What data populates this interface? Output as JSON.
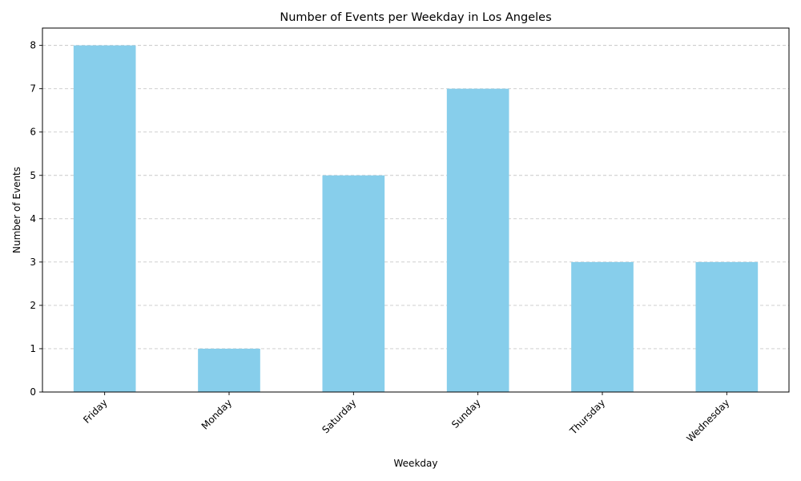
{
  "chart_data": {
    "type": "bar",
    "title": "Number of Events per Weekday in Los Angeles",
    "xlabel": "Weekday",
    "ylabel": "Number of Events",
    "categories": [
      "Friday",
      "Monday",
      "Saturday",
      "Sunday",
      "Thursday",
      "Wednesday"
    ],
    "values": [
      8,
      1,
      5,
      7,
      3,
      3
    ],
    "ylim": [
      0,
      8.4
    ],
    "yticks": [
      0,
      1,
      2,
      3,
      4,
      5,
      6,
      7,
      8
    ],
    "grid": "y-dashed",
    "bar_color": "#87ceeb",
    "x_tick_rotation_deg": 45
  }
}
